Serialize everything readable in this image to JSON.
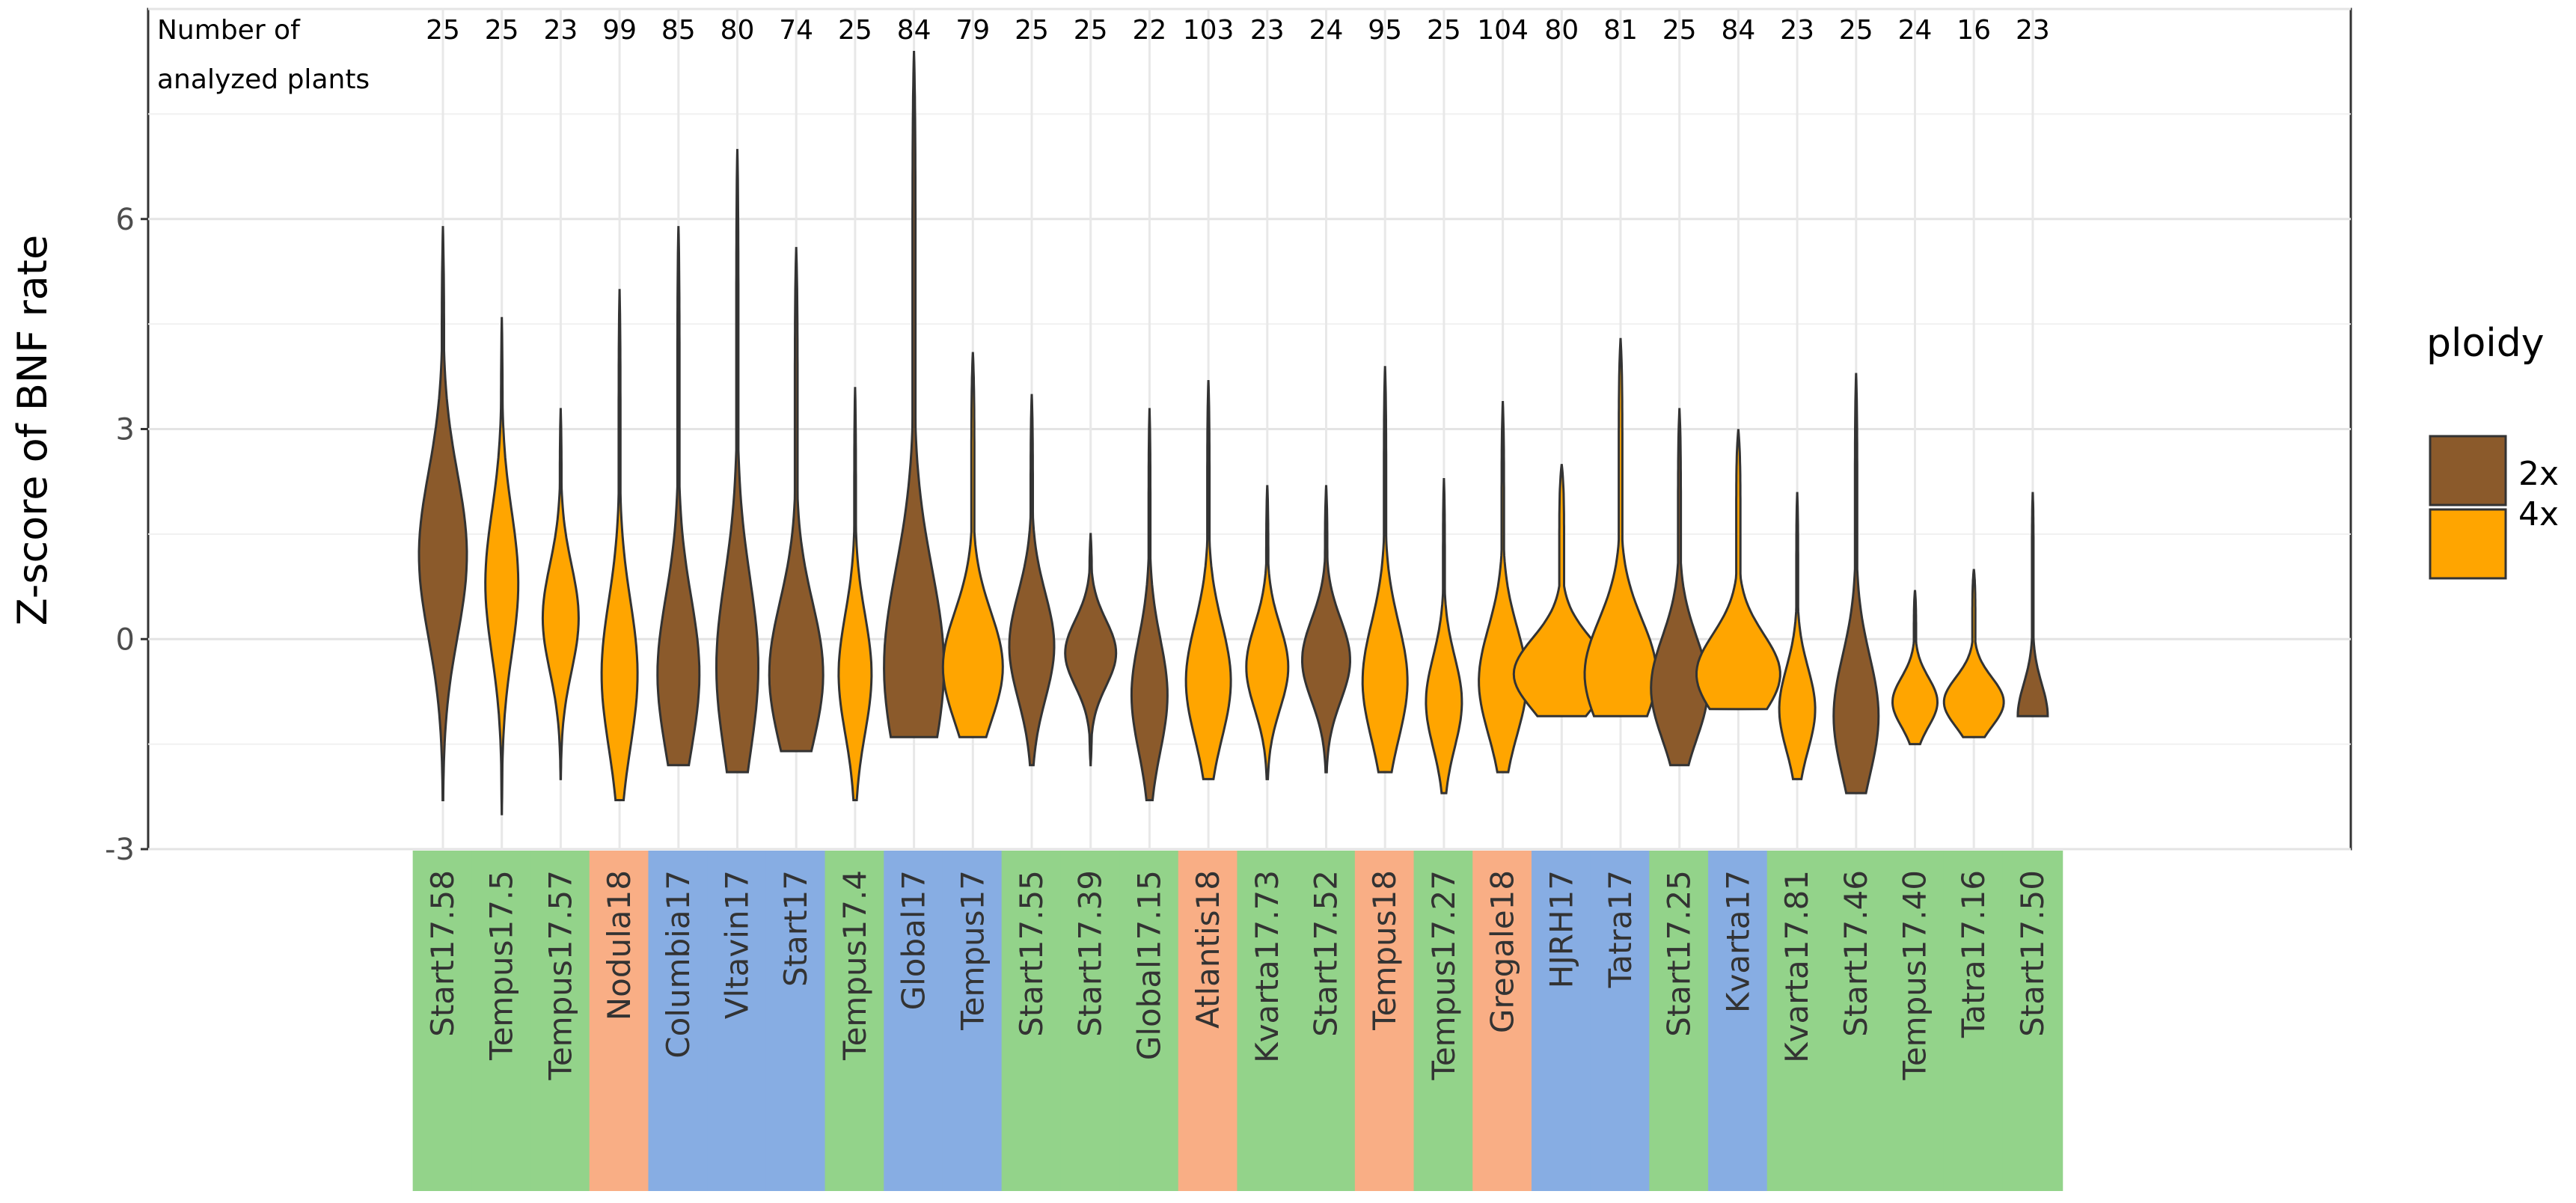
{
  "chart_data": {
    "type": "violin",
    "ylabel": "Z-score of BNF rate",
    "xlabel": "",
    "ylim": [
      -3,
      9
    ],
    "yticks": [
      -3,
      0,
      3,
      6
    ],
    "grid": true,
    "header_label_line1": "Number of",
    "header_label_line2": "analyzed plants",
    "legend": {
      "title": "ploidy",
      "placement": "right",
      "entries": [
        {
          "label": "2x",
          "color": "#8B5A2B"
        },
        {
          "label": "4x",
          "color": "#FFA500"
        }
      ]
    },
    "group_colors": {
      "green": "#93D38A",
      "salmon": "#F9AE85",
      "blue": "#87ADE3"
    },
    "violins": [
      {
        "name": "Start17.58",
        "count": "25",
        "ploidy": "2x",
        "group": "green",
        "min": -2.3,
        "max": 5.9,
        "peak": 1.2,
        "width": 0.8
      },
      {
        "name": "Tempus17.5",
        "count": "25",
        "ploidy": "4x",
        "group": "green",
        "min": -2.5,
        "max": 4.6,
        "peak": 0.8,
        "width": 0.55
      },
      {
        "name": "Tempus17.57",
        "count": "23",
        "ploidy": "4x",
        "group": "green",
        "min": -2.0,
        "max": 3.3,
        "peak": 0.3,
        "width": 0.6
      },
      {
        "name": "Nodula18",
        "count": "99",
        "ploidy": "4x",
        "group": "salmon",
        "min": -2.3,
        "max": 5.0,
        "peak": -0.5,
        "width": 0.6
      },
      {
        "name": "Columbia17",
        "count": "85",
        "ploidy": "2x",
        "group": "blue",
        "min": -1.8,
        "max": 5.9,
        "peak": -0.5,
        "width": 0.7
      },
      {
        "name": "Vltavin17",
        "count": "80",
        "ploidy": "2x",
        "group": "blue",
        "min": -1.9,
        "max": 7.0,
        "peak": -0.4,
        "width": 0.7
      },
      {
        "name": "Start17",
        "count": "74",
        "ploidy": "2x",
        "group": "blue",
        "min": -1.6,
        "max": 5.6,
        "peak": -0.5,
        "width": 0.9
      },
      {
        "name": "Tempus17.4",
        "count": "25",
        "ploidy": "4x",
        "group": "green",
        "min": -2.3,
        "max": 3.6,
        "peak": -0.5,
        "width": 0.55
      },
      {
        "name": "Global17",
        "count": "84",
        "ploidy": "2x",
        "group": "blue",
        "min": -1.4,
        "max": 8.4,
        "peak": -0.4,
        "width": 1.0
      },
      {
        "name": "Tempus17",
        "count": "79",
        "ploidy": "4x",
        "group": "blue",
        "min": -1.4,
        "max": 4.1,
        "peak": -0.4,
        "width": 1.0
      },
      {
        "name": "Start17.55",
        "count": "25",
        "ploidy": "2x",
        "group": "green",
        "min": -1.8,
        "max": 3.5,
        "peak": -0.1,
        "width": 0.75
      },
      {
        "name": "Start17.39",
        "count": "25",
        "ploidy": "2x",
        "group": "green",
        "min": -1.8,
        "max": 1.5,
        "peak": -0.2,
        "width": 0.85
      },
      {
        "name": "Global17.15",
        "count": "22",
        "ploidy": "2x",
        "group": "green",
        "min": -2.3,
        "max": 3.3,
        "peak": -0.8,
        "width": 0.6
      },
      {
        "name": "Atlantis18",
        "count": "103",
        "ploidy": "4x",
        "group": "salmon",
        "min": -2.0,
        "max": 3.7,
        "peak": -0.6,
        "width": 0.75
      },
      {
        "name": "Kvarta17.73",
        "count": "23",
        "ploidy": "4x",
        "group": "green",
        "min": -2.0,
        "max": 2.2,
        "peak": -0.4,
        "width": 0.7
      },
      {
        "name": "Start17.52",
        "count": "24",
        "ploidy": "2x",
        "group": "green",
        "min": -1.9,
        "max": 2.2,
        "peak": -0.3,
        "width": 0.8
      },
      {
        "name": "Tempus18",
        "count": "95",
        "ploidy": "4x",
        "group": "salmon",
        "min": -1.9,
        "max": 3.9,
        "peak": -0.6,
        "width": 0.75
      },
      {
        "name": "Tempus17.27",
        "count": "25",
        "ploidy": "4x",
        "group": "green",
        "min": -2.2,
        "max": 2.3,
        "peak": -0.9,
        "width": 0.6
      },
      {
        "name": "Gregale18",
        "count": "104",
        "ploidy": "4x",
        "group": "salmon",
        "min": -1.9,
        "max": 3.4,
        "peak": -0.6,
        "width": 0.8
      },
      {
        "name": "HJRH17",
        "count": "80",
        "ploidy": "4x",
        "group": "blue",
        "min": -1.1,
        "max": 2.5,
        "peak": -0.5,
        "width": 1.6
      },
      {
        "name": "Tatra17",
        "count": "81",
        "ploidy": "4x",
        "group": "blue",
        "min": -1.1,
        "max": 4.3,
        "peak": -0.5,
        "width": 1.2
      },
      {
        "name": "Start17.25",
        "count": "25",
        "ploidy": "2x",
        "group": "green",
        "min": -1.8,
        "max": 3.3,
        "peak": -0.7,
        "width": 0.95
      },
      {
        "name": "Kvarta17",
        "count": "84",
        "ploidy": "4x",
        "group": "blue",
        "min": -1.0,
        "max": 3.0,
        "peak": -0.5,
        "width": 1.4
      },
      {
        "name": "Kvarta17.81",
        "count": "23",
        "ploidy": "4x",
        "group": "green",
        "min": -2.0,
        "max": 2.1,
        "peak": -1.0,
        "width": 0.6
      },
      {
        "name": "Start17.46",
        "count": "25",
        "ploidy": "2x",
        "group": "green",
        "min": -2.2,
        "max": 3.8,
        "peak": -1.1,
        "width": 0.75
      },
      {
        "name": "Tempus17.40",
        "count": "24",
        "ploidy": "4x",
        "group": "green",
        "min": -1.5,
        "max": 0.7,
        "peak": -0.9,
        "width": 0.75
      },
      {
        "name": "Tatra17.16",
        "count": "16",
        "ploidy": "4x",
        "group": "green",
        "min": -1.4,
        "max": 1.0,
        "peak": -0.9,
        "width": 1.0
      },
      {
        "name": "Start17.50",
        "count": "23",
        "ploidy": "2x",
        "group": "green",
        "min": -1.1,
        "max": 2.1,
        "peak": -1.1,
        "width": 0.5
      }
    ]
  }
}
